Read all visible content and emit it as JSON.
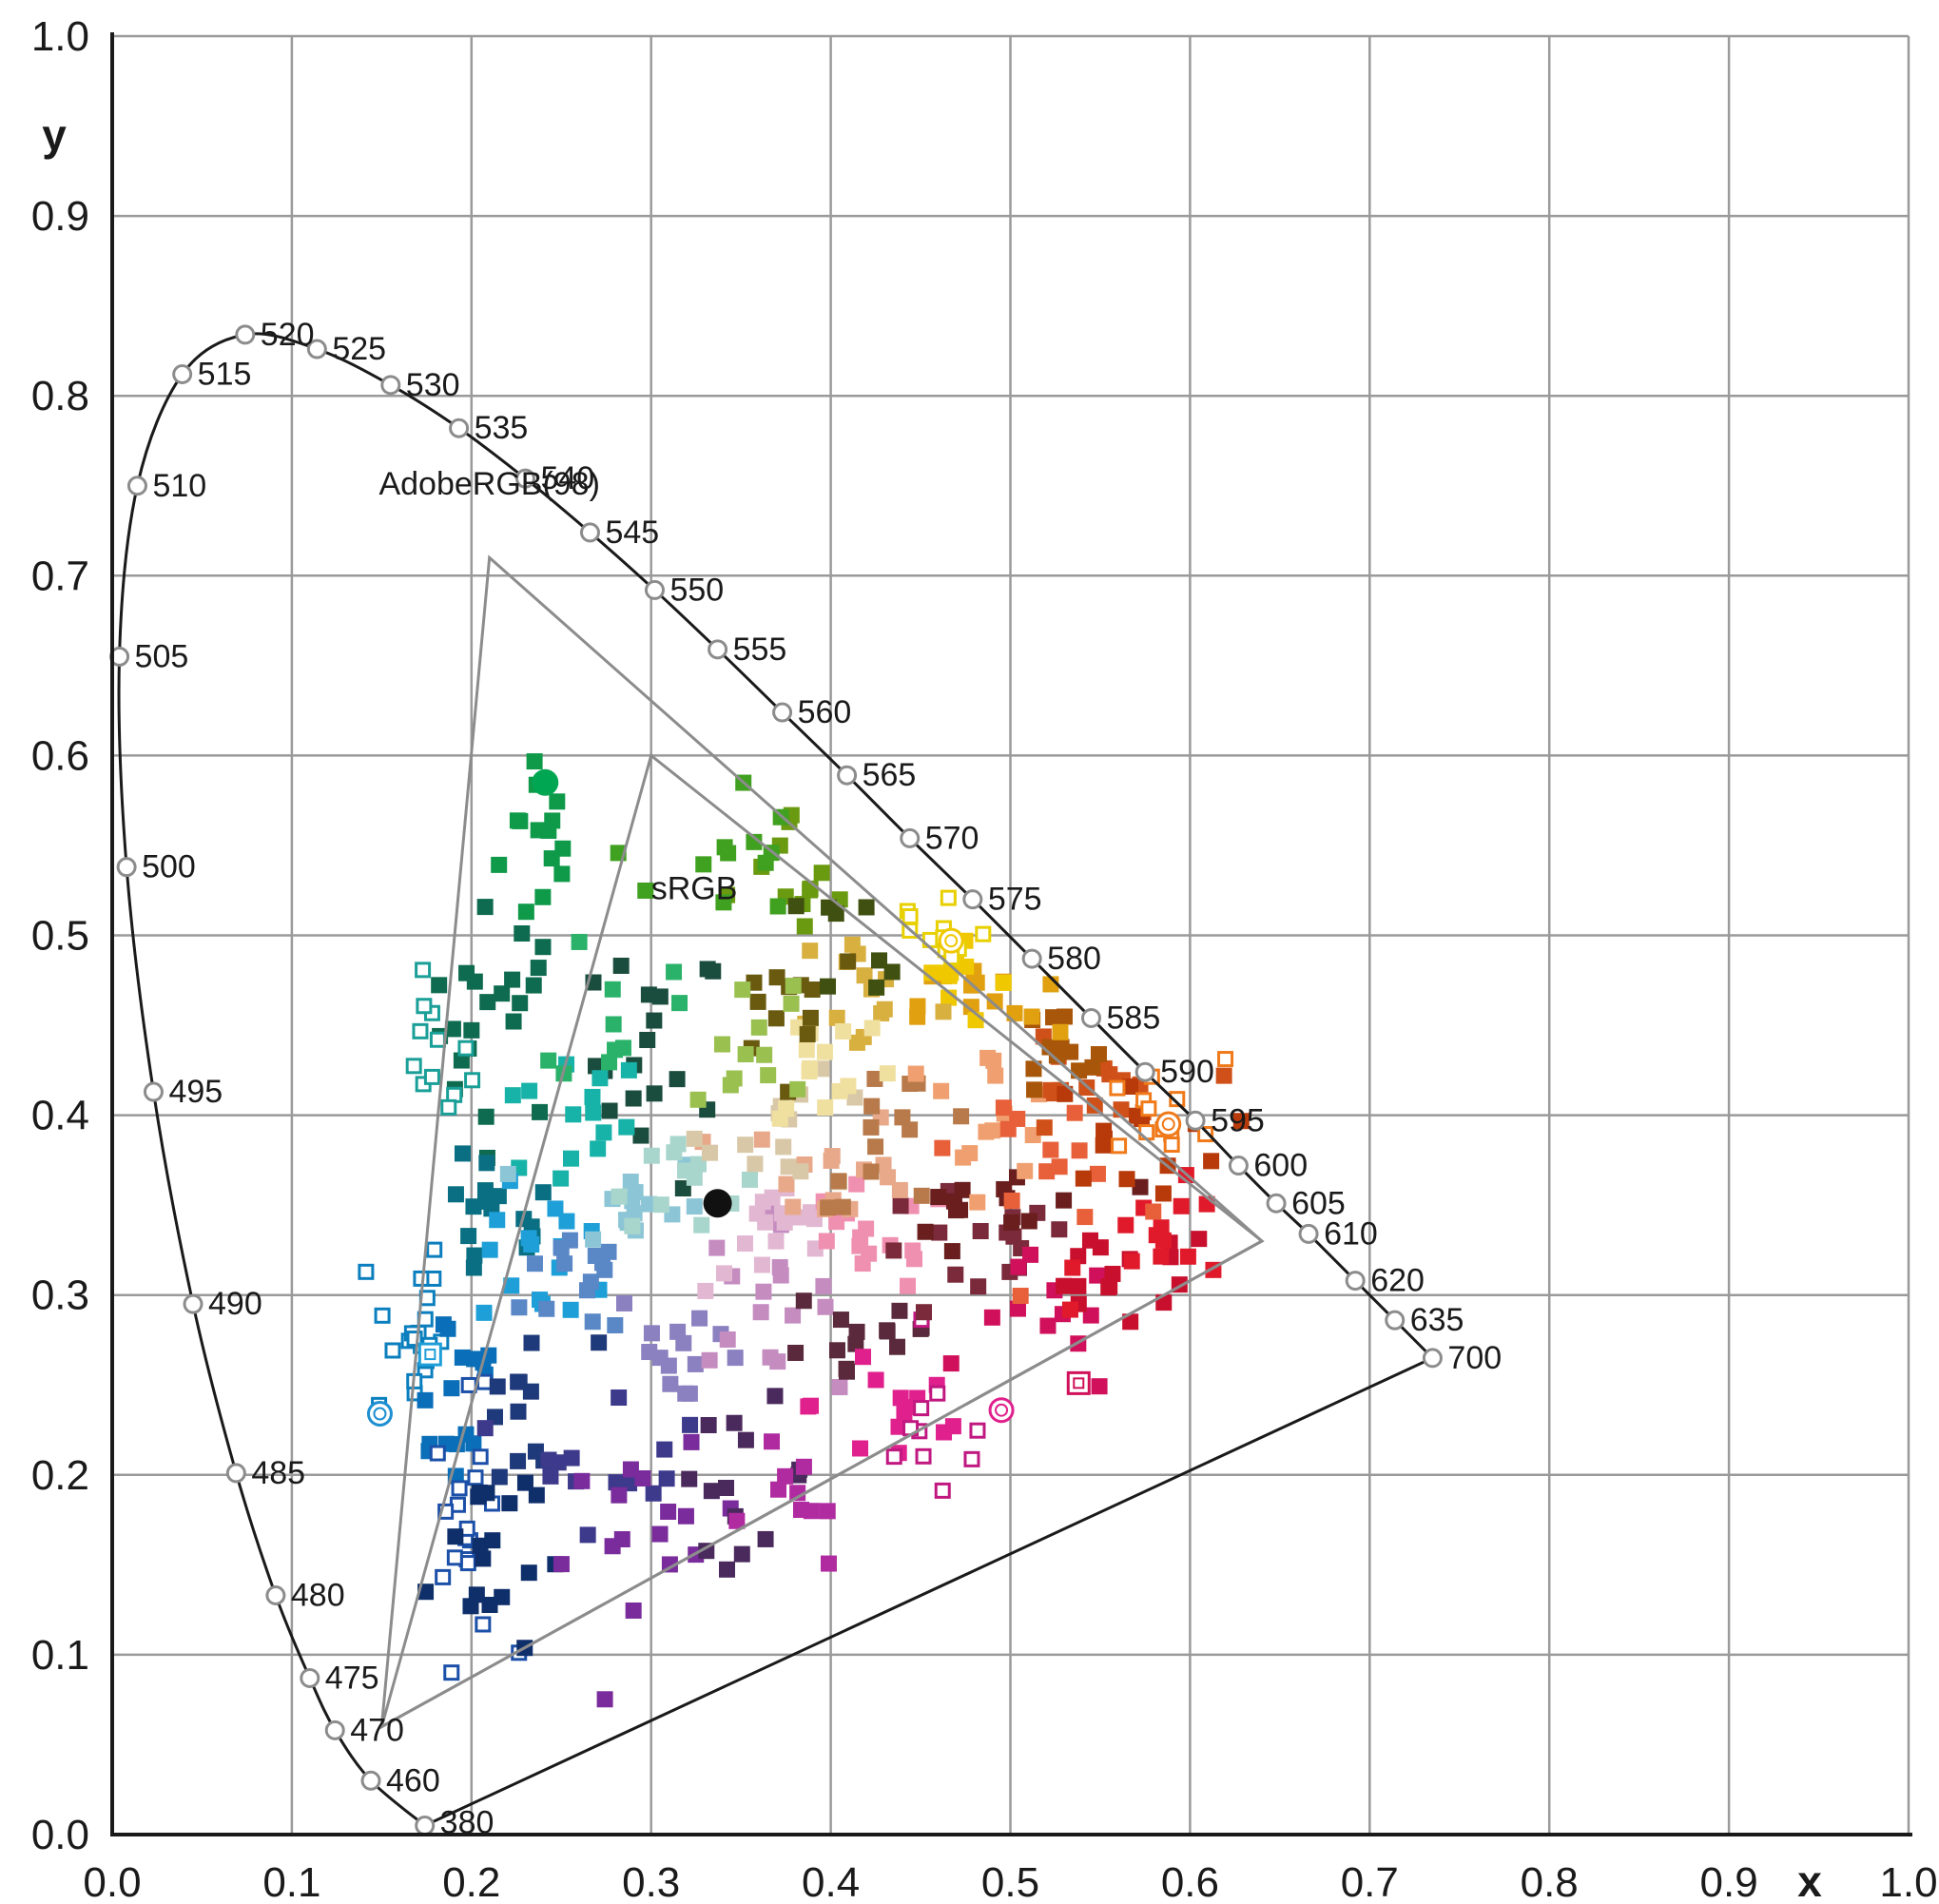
{
  "chart_data": {
    "type": "scatter",
    "title": "",
    "xlabel": "x",
    "ylabel": "y",
    "xlim": [
      0.0,
      1.0
    ],
    "ylim": [
      0.0,
      1.0
    ],
    "grid": true,
    "x_ticks": [
      "0.0",
      "0.1",
      "0.2",
      "0.3",
      "0.4",
      "0.5",
      "0.6",
      "0.7",
      "0.8",
      "0.9",
      "1.0"
    ],
    "y_ticks": [
      "0.0",
      "0.1",
      "0.2",
      "0.3",
      "0.4",
      "0.5",
      "0.6",
      "0.7",
      "0.8",
      "0.9",
      "1.0"
    ],
    "spectral_locus": [
      {
        "label": "380",
        "x": 0.174,
        "y": 0.005
      },
      {
        "label": "460",
        "x": 0.144,
        "y": 0.03
      },
      {
        "label": "470",
        "x": 0.124,
        "y": 0.058
      },
      {
        "label": "475",
        "x": 0.11,
        "y": 0.087
      },
      {
        "label": "480",
        "x": 0.091,
        "y": 0.133
      },
      {
        "label": "485",
        "x": 0.069,
        "y": 0.201
      },
      {
        "label": "490",
        "x": 0.045,
        "y": 0.295
      },
      {
        "label": "495",
        "x": 0.023,
        "y": 0.413
      },
      {
        "label": "500",
        "x": 0.008,
        "y": 0.538
      },
      {
        "label": "505",
        "x": 0.004,
        "y": 0.655
      },
      {
        "label": "510",
        "x": 0.014,
        "y": 0.75
      },
      {
        "label": "515",
        "x": 0.039,
        "y": 0.812
      },
      {
        "label": "520",
        "x": 0.074,
        "y": 0.834
      },
      {
        "label": "525",
        "x": 0.114,
        "y": 0.826
      },
      {
        "label": "530",
        "x": 0.155,
        "y": 0.806
      },
      {
        "label": "535",
        "x": 0.193,
        "y": 0.782
      },
      {
        "label": "540",
        "x": 0.23,
        "y": 0.754
      },
      {
        "label": "545",
        "x": 0.266,
        "y": 0.724
      },
      {
        "label": "550",
        "x": 0.302,
        "y": 0.692
      },
      {
        "label": "555",
        "x": 0.337,
        "y": 0.659
      },
      {
        "label": "560",
        "x": 0.373,
        "y": 0.624
      },
      {
        "label": "565",
        "x": 0.409,
        "y": 0.589
      },
      {
        "label": "570",
        "x": 0.444,
        "y": 0.554
      },
      {
        "label": "575",
        "x": 0.479,
        "y": 0.52
      },
      {
        "label": "580",
        "x": 0.512,
        "y": 0.487
      },
      {
        "label": "585",
        "x": 0.545,
        "y": 0.454
      },
      {
        "label": "590",
        "x": 0.575,
        "y": 0.424
      },
      {
        "label": "595",
        "x": 0.603,
        "y": 0.397
      },
      {
        "label": "600",
        "x": 0.627,
        "y": 0.372
      },
      {
        "label": "605",
        "x": 0.648,
        "y": 0.351
      },
      {
        "label": "610",
        "x": 0.666,
        "y": 0.334
      },
      {
        "label": "620",
        "x": 0.692,
        "y": 0.308
      },
      {
        "label": "635",
        "x": 0.714,
        "y": 0.286
      },
      {
        "label": "700",
        "x": 0.735,
        "y": 0.265
      }
    ],
    "gamuts": [
      {
        "name": "AdobeRGB(98)",
        "vertices": [
          [
            0.64,
            0.33
          ],
          [
            0.21,
            0.71
          ],
          [
            0.15,
            0.06
          ]
        ]
      },
      {
        "name": "sRGB",
        "vertices": [
          [
            0.64,
            0.33
          ],
          [
            0.3,
            0.6
          ],
          [
            0.15,
            0.06
          ]
        ]
      }
    ],
    "white_point": {
      "x": 0.337,
      "y": 0.351,
      "color": "#111111"
    },
    "highlight_point": {
      "x": 0.241,
      "y": 0.585,
      "color": "#00a651"
    },
    "sample_clusters": [
      {
        "cx": 0.24,
        "cy": 0.555,
        "sx": 0.012,
        "sy": 0.03,
        "n": 14,
        "color": "#0f9a4a"
      },
      {
        "cx": 0.215,
        "cy": 0.455,
        "sx": 0.02,
        "sy": 0.03,
        "n": 22,
        "color": "#0f6b4f"
      },
      {
        "cx": 0.305,
        "cy": 0.43,
        "sx": 0.018,
        "sy": 0.035,
        "n": 18,
        "color": "#1b4d3e"
      },
      {
        "cx": 0.25,
        "cy": 0.395,
        "sx": 0.025,
        "sy": 0.02,
        "n": 14,
        "color": "#17b2a8"
      },
      {
        "cx": 0.18,
        "cy": 0.43,
        "sx": 0.01,
        "sy": 0.02,
        "n": 12,
        "color": "#1a9f98",
        "hollow": true
      },
      {
        "cx": 0.21,
        "cy": 0.34,
        "sx": 0.02,
        "sy": 0.02,
        "n": 16,
        "color": "#0a6f82"
      },
      {
        "cx": 0.245,
        "cy": 0.32,
        "sx": 0.02,
        "sy": 0.02,
        "n": 16,
        "color": "#1e9fd8"
      },
      {
        "cx": 0.165,
        "cy": 0.28,
        "sx": 0.01,
        "sy": 0.03,
        "n": 20,
        "color": "#0b7fbe",
        "hollow": true
      },
      {
        "cx": 0.19,
        "cy": 0.25,
        "sx": 0.015,
        "sy": 0.03,
        "n": 16,
        "color": "#0a6fb8"
      },
      {
        "cx": 0.27,
        "cy": 0.31,
        "sx": 0.02,
        "sy": 0.02,
        "n": 14,
        "color": "#5a87c6"
      },
      {
        "cx": 0.29,
        "cy": 0.35,
        "sx": 0.02,
        "sy": 0.015,
        "n": 14,
        "color": "#8cc6d6"
      },
      {
        "cx": 0.31,
        "cy": 0.37,
        "sx": 0.02,
        "sy": 0.015,
        "n": 12,
        "color": "#a9d6cc"
      },
      {
        "cx": 0.2,
        "cy": 0.17,
        "sx": 0.01,
        "sy": 0.035,
        "n": 20,
        "color": "#1b4fa8",
        "hollow": true
      },
      {
        "cx": 0.205,
        "cy": 0.16,
        "sx": 0.015,
        "sy": 0.035,
        "n": 18,
        "color": "#0f2f6b"
      },
      {
        "cx": 0.23,
        "cy": 0.23,
        "sx": 0.02,
        "sy": 0.025,
        "n": 12,
        "color": "#1f3a7a"
      },
      {
        "cx": 0.28,
        "cy": 0.22,
        "sx": 0.025,
        "sy": 0.025,
        "n": 14,
        "color": "#3d3a8c"
      },
      {
        "cx": 0.3,
        "cy": 0.16,
        "sx": 0.025,
        "sy": 0.025,
        "n": 16,
        "color": "#7a2c9c"
      },
      {
        "cx": 0.32,
        "cy": 0.27,
        "sx": 0.02,
        "sy": 0.02,
        "n": 14,
        "color": "#8b80c0"
      },
      {
        "cx": 0.35,
        "cy": 0.2,
        "sx": 0.02,
        "sy": 0.02,
        "n": 14,
        "color": "#4a2a5c"
      },
      {
        "cx": 0.38,
        "cy": 0.18,
        "sx": 0.02,
        "sy": 0.02,
        "n": 10,
        "color": "#b02aa0"
      },
      {
        "cx": 0.36,
        "cy": 0.3,
        "sx": 0.02,
        "sy": 0.02,
        "n": 16,
        "color": "#c58cc0"
      },
      {
        "cx": 0.37,
        "cy": 0.33,
        "sx": 0.02,
        "sy": 0.015,
        "n": 16,
        "color": "#e2b7d2"
      },
      {
        "cx": 0.42,
        "cy": 0.28,
        "sx": 0.025,
        "sy": 0.02,
        "n": 14,
        "color": "#5a2a3c"
      },
      {
        "cx": 0.44,
        "cy": 0.24,
        "sx": 0.025,
        "sy": 0.025,
        "n": 14,
        "color": "#e0208c"
      },
      {
        "cx": 0.46,
        "cy": 0.22,
        "sx": 0.02,
        "sy": 0.02,
        "n": 10,
        "color": "#c01880",
        "hollow": true
      },
      {
        "cx": 0.42,
        "cy": 0.33,
        "sx": 0.025,
        "sy": 0.015,
        "n": 16,
        "color": "#f090b0"
      },
      {
        "cx": 0.48,
        "cy": 0.32,
        "sx": 0.03,
        "sy": 0.02,
        "n": 16,
        "color": "#7a2a3a"
      },
      {
        "cx": 0.52,
        "cy": 0.28,
        "sx": 0.02,
        "sy": 0.02,
        "n": 12,
        "color": "#d0105a"
      },
      {
        "cx": 0.56,
        "cy": 0.31,
        "sx": 0.03,
        "sy": 0.015,
        "n": 16,
        "color": "#c8102e"
      },
      {
        "cx": 0.59,
        "cy": 0.33,
        "sx": 0.025,
        "sy": 0.015,
        "n": 14,
        "color": "#e01a2a"
      },
      {
        "cx": 0.5,
        "cy": 0.35,
        "sx": 0.03,
        "sy": 0.015,
        "n": 14,
        "color": "#6a1e1e"
      },
      {
        "cx": 0.4,
        "cy": 0.37,
        "sx": 0.025,
        "sy": 0.015,
        "n": 16,
        "color": "#e8a88a"
      },
      {
        "cx": 0.38,
        "cy": 0.39,
        "sx": 0.025,
        "sy": 0.015,
        "n": 14,
        "color": "#d8c8a8"
      },
      {
        "cx": 0.44,
        "cy": 0.39,
        "sx": 0.025,
        "sy": 0.02,
        "n": 14,
        "color": "#b87a4a"
      },
      {
        "cx": 0.48,
        "cy": 0.4,
        "sx": 0.025,
        "sy": 0.02,
        "n": 14,
        "color": "#f0a070"
      },
      {
        "cx": 0.52,
        "cy": 0.38,
        "sx": 0.025,
        "sy": 0.02,
        "n": 14,
        "color": "#e8603a"
      },
      {
        "cx": 0.54,
        "cy": 0.41,
        "sx": 0.025,
        "sy": 0.015,
        "n": 16,
        "color": "#d0501a"
      },
      {
        "cx": 0.57,
        "cy": 0.39,
        "sx": 0.025,
        "sy": 0.015,
        "n": 14,
        "color": "#b83a0a"
      },
      {
        "cx": 0.58,
        "cy": 0.4,
        "sx": 0.02,
        "sy": 0.015,
        "n": 12,
        "color": "#f07a1a",
        "hollow": true
      },
      {
        "cx": 0.52,
        "cy": 0.43,
        "sx": 0.02,
        "sy": 0.015,
        "n": 12,
        "color": "#a8560a"
      },
      {
        "cx": 0.49,
        "cy": 0.46,
        "sx": 0.02,
        "sy": 0.015,
        "n": 14,
        "color": "#e0a010"
      },
      {
        "cx": 0.47,
        "cy": 0.48,
        "sx": 0.015,
        "sy": 0.015,
        "n": 14,
        "color": "#f0c800"
      },
      {
        "cx": 0.46,
        "cy": 0.5,
        "sx": 0.015,
        "sy": 0.015,
        "n": 12,
        "color": "#e8d000",
        "hollow": true
      },
      {
        "cx": 0.42,
        "cy": 0.47,
        "sx": 0.02,
        "sy": 0.02,
        "n": 14,
        "color": "#d8b040"
      },
      {
        "cx": 0.4,
        "cy": 0.43,
        "sx": 0.02,
        "sy": 0.02,
        "n": 14,
        "color": "#f0e0a0"
      },
      {
        "cx": 0.38,
        "cy": 0.47,
        "sx": 0.02,
        "sy": 0.02,
        "n": 12,
        "color": "#6a5a10"
      },
      {
        "cx": 0.38,
        "cy": 0.52,
        "sx": 0.02,
        "sy": 0.025,
        "n": 12,
        "color": "#6a9a10"
      },
      {
        "cx": 0.34,
        "cy": 0.54,
        "sx": 0.02,
        "sy": 0.025,
        "n": 12,
        "color": "#40a020"
      },
      {
        "cx": 0.36,
        "cy": 0.45,
        "sx": 0.02,
        "sy": 0.025,
        "n": 12,
        "color": "#9ac050"
      },
      {
        "cx": 0.28,
        "cy": 0.46,
        "sx": 0.015,
        "sy": 0.025,
        "n": 10,
        "color": "#2ab26a"
      },
      {
        "cx": 0.42,
        "cy": 0.5,
        "sx": 0.015,
        "sy": 0.015,
        "n": 8,
        "color": "#405010"
      }
    ],
    "open_circles": [
      {
        "x": 0.149,
        "y": 0.234,
        "color": "#1e8fd0"
      },
      {
        "x": 0.177,
        "y": 0.267,
        "color": "#1e9fd8",
        "square": true
      },
      {
        "x": 0.495,
        "y": 0.236,
        "color": "#e0208c"
      },
      {
        "x": 0.467,
        "y": 0.497,
        "color": "#f0c800"
      },
      {
        "x": 0.588,
        "y": 0.395,
        "color": "#f07a1a"
      },
      {
        "x": 0.538,
        "y": 0.251,
        "color": "#d0105a",
        "square": true
      }
    ]
  }
}
